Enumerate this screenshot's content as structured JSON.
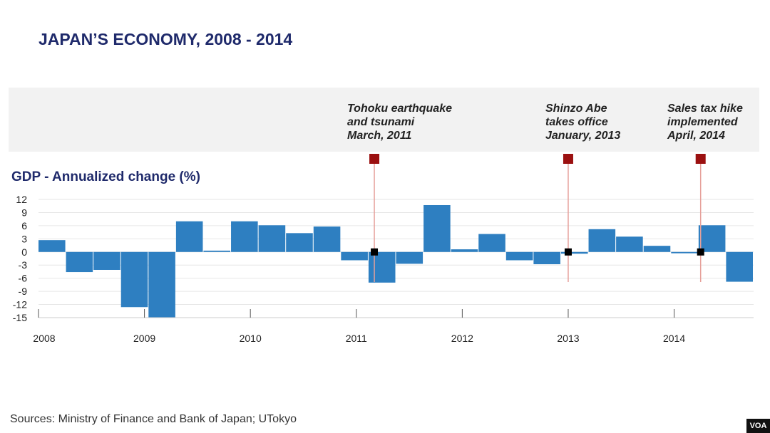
{
  "title": "JAPAN’S ECONOMY, 2008 - 2014",
  "source": "Sources: Ministry of Finance and Bank of Japan; UTokyo",
  "logo": "VOA",
  "colors": {
    "bar": "#2e7fc1",
    "marker": "#9b1010",
    "event_line": "#e6a09a",
    "point": "#000000",
    "title": "#1f2a6b"
  },
  "chart_data": {
    "type": "bar",
    "ylabel": "GDP - Annualized change (%)",
    "xlabel": "",
    "ylim": [
      -15,
      12
    ],
    "yticks": [
      12,
      9,
      6,
      3,
      0,
      -3,
      -6,
      -9,
      -12,
      -15
    ],
    "x_start": 2008.0,
    "x_end": 2014.75,
    "xticks": [
      "2008",
      "2009",
      "2010",
      "2011",
      "2012",
      "2013",
      "2014"
    ],
    "grid": true,
    "series": [
      {
        "x": [
          "2008 Q1",
          "2008 Q2",
          "2008 Q3",
          "2008 Q4",
          "2009 Q1",
          "2009 Q2",
          "2009 Q3",
          "2009 Q4",
          "2010 Q1",
          "2010 Q2",
          "2010 Q3",
          "2010 Q4",
          "2011 Q1",
          "2011 Q2",
          "2011 Q3",
          "2011 Q4",
          "2012 Q1",
          "2012 Q2",
          "2012 Q3",
          "2012 Q4",
          "2013 Q1",
          "2013 Q2",
          "2013 Q3",
          "2013 Q4",
          "2014 Q1",
          "2014 Q2"
        ],
        "values": [
          2.7,
          -4.6,
          -4.1,
          -12.6,
          -15.0,
          7.0,
          0.3,
          7.0,
          6.1,
          4.3,
          5.8,
          -1.9,
          -7.0,
          -2.7,
          10.7,
          0.6,
          4.1,
          -1.9,
          -2.8,
          -0.4,
          5.2,
          3.5,
          1.4,
          -0.3,
          6.1,
          -6.8
        ]
      }
    ],
    "events": [
      {
        "lines": [
          "Tohoku earthquake",
          "and tsunami",
          "March, 2011"
        ],
        "date": 2011.17
      },
      {
        "lines": [
          "Shinzo Abe",
          "takes office",
          "January, 2013"
        ],
        "date": 2013.0
      },
      {
        "lines": [
          "Sales tax hike",
          "implemented",
          "April, 2014"
        ],
        "date": 2014.25
      }
    ]
  }
}
